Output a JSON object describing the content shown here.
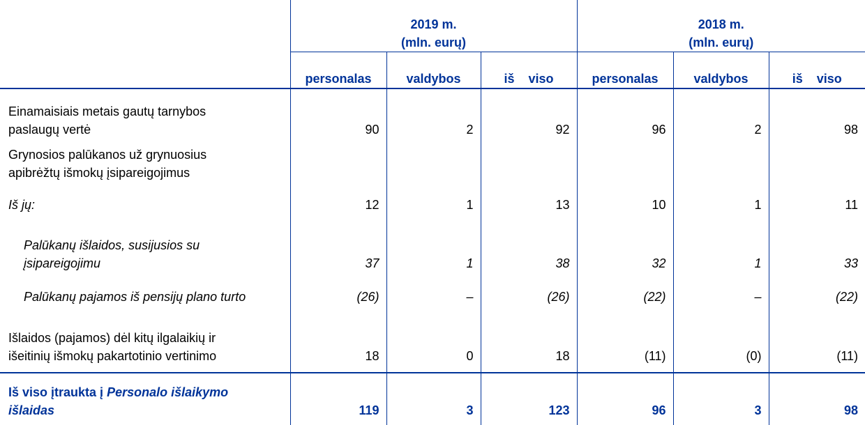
{
  "header": {
    "years": [
      {
        "line1": "2019 m.",
        "line2": "(mln. eurų)"
      },
      {
        "line1": "2018 m.",
        "line2": "(mln. eurų)"
      }
    ],
    "columns": [
      "personalas",
      "valdybos",
      "iš    viso",
      "personalas",
      "valdybos",
      "iš    viso"
    ]
  },
  "rows": [
    {
      "label": "Einamaisiais metais gautų tarnybos paslaugų vertė",
      "values": [
        "90",
        "2",
        "92",
        "96",
        "2",
        "98"
      ]
    },
    {
      "label": "Grynosios palūkanos už grynuosius apibrėžtų išmokų įsipareigojimus",
      "values": [
        "",
        "",
        "",
        "",
        "",
        ""
      ]
    },
    {
      "label": "Iš jų:",
      "values": [
        "12",
        "1",
        "13",
        "10",
        "1",
        "11"
      ]
    },
    {
      "label": "Palūkanų išlaidos, susijusios su įsipareigojimu",
      "values": [
        "37",
        "1",
        "38",
        "32",
        "1",
        "33"
      ]
    },
    {
      "label": "Palūkanų pajamos iš pensijų plano turto",
      "values": [
        "(26)",
        "–",
        "(26)",
        "(22)",
        "–",
        "(22)"
      ]
    },
    {
      "label": "Išlaidos (pajamos) dėl kitų ilgalaikių ir išeitinių išmokų pakartotinio vertinimo",
      "values": [
        "18",
        "0",
        "18",
        "(11)",
        "(0)",
        "(11)"
      ]
    }
  ],
  "total": {
    "label_prefix": "Iš viso įtraukta į ",
    "label_italic": "Personalo išlaikymo išlaidas",
    "values": [
      "119",
      "3",
      "123",
      "96",
      "3",
      "98"
    ]
  }
}
